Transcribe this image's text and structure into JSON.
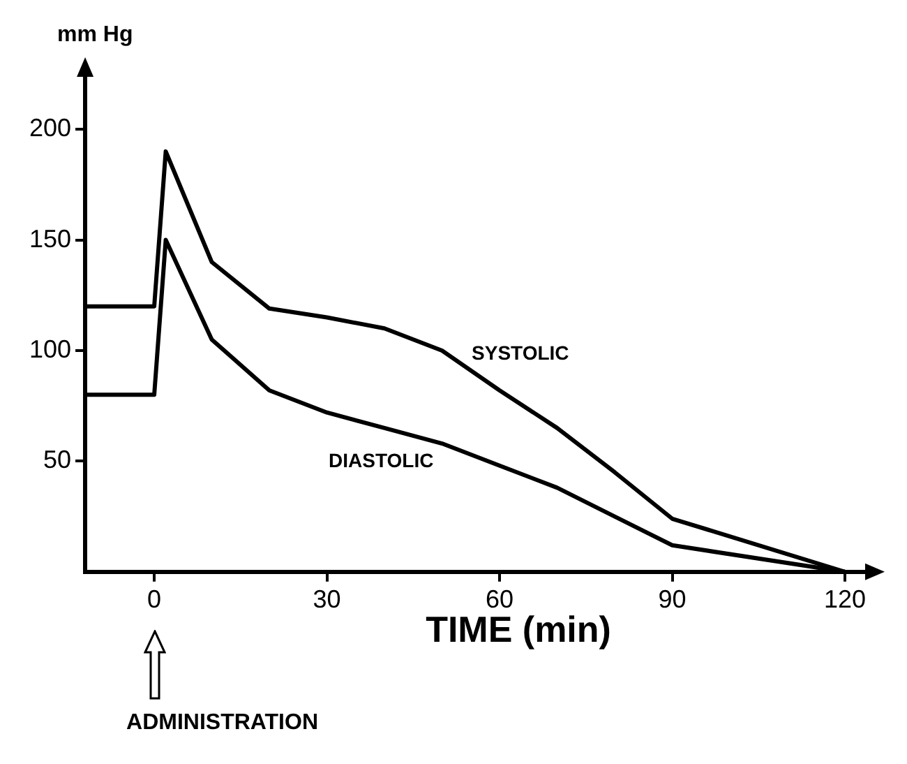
{
  "chart_data": {
    "type": "line",
    "ylabel": "mm Hg",
    "xlabel": "TIME (min)",
    "xlim": [
      -12,
      124
    ],
    "ylim": [
      0,
      225
    ],
    "xticks": [
      0,
      30,
      60,
      90,
      120
    ],
    "yticks": [
      50,
      100,
      150,
      200
    ],
    "grid": false,
    "legend": false,
    "series": [
      {
        "name": "SYSTOLIC",
        "color": "#000000",
        "x": [
          -12,
          0,
          2,
          10,
          20,
          30,
          40,
          50,
          60,
          70,
          80,
          90,
          120
        ],
        "values": [
          120,
          120,
          190,
          140,
          119,
          115,
          110,
          100,
          82,
          65,
          45,
          24,
          0
        ]
      },
      {
        "name": "DIASTOLIC",
        "color": "#000000",
        "x": [
          -12,
          0,
          2,
          10,
          20,
          30,
          40,
          50,
          60,
          70,
          80,
          90,
          120
        ],
        "values": [
          80,
          80,
          150,
          105,
          82,
          72,
          65,
          58,
          48,
          38,
          25,
          12,
          0
        ]
      }
    ],
    "annotations": [
      "ADMINISTRATION"
    ]
  }
}
